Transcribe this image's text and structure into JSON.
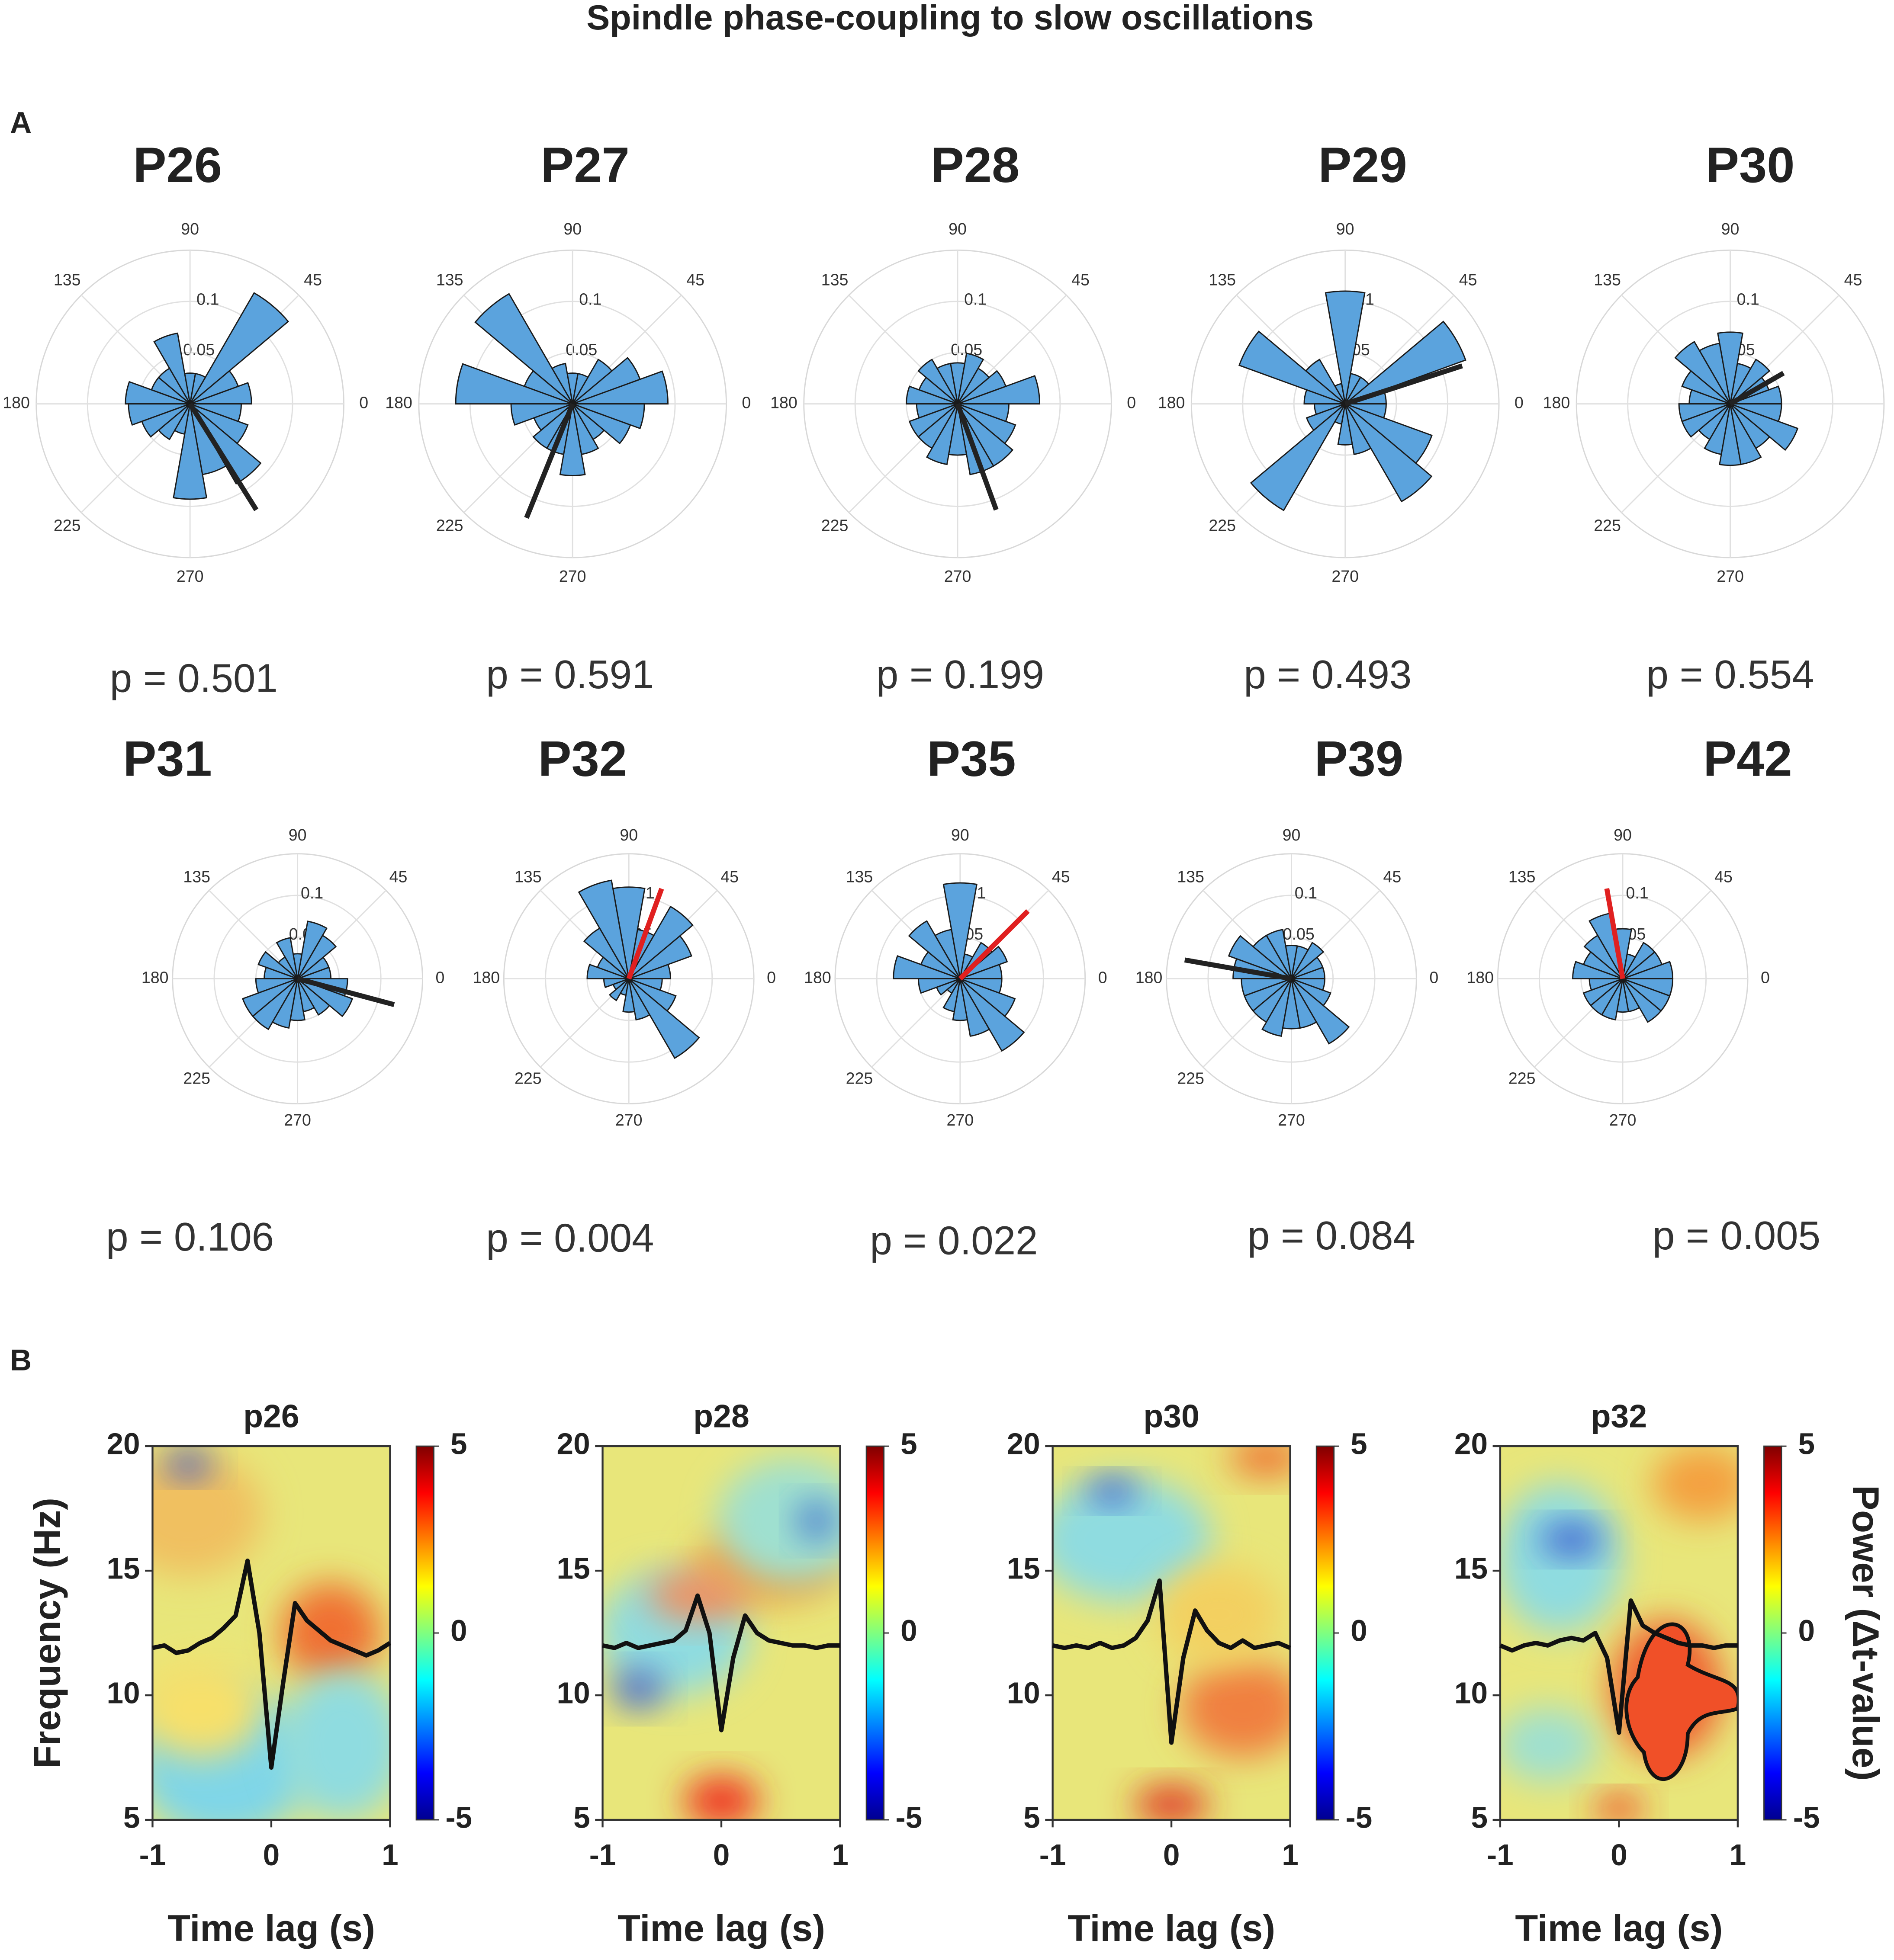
{
  "title": "Spindle phase-coupling to slow oscillations",
  "panel_labels": [
    "A",
    "B"
  ],
  "chart_data": [
    {
      "type": "polar_histogram",
      "title": "P26",
      "p_label": "p = 0.501",
      "bins": [
        0,
        20,
        40,
        60,
        80,
        100,
        120,
        140,
        160,
        180,
        200,
        220,
        240,
        260,
        280,
        300,
        320,
        340,
        360
      ],
      "values": [
        0.06,
        0.05,
        0.125,
        0.03,
        0.03,
        0.07,
        0.04,
        0.04,
        0.063,
        0.06,
        0.05,
        0.04,
        0.03,
        0.093,
        0.07,
        0.09,
        0.06,
        0.05
      ],
      "rlim": [
        0,
        0.15
      ],
      "rticks": [
        0.05,
        0.1
      ],
      "angle_ticks": [
        0,
        45,
        90,
        135,
        180,
        225,
        270
      ],
      "mean_angle": 302,
      "mean_length": 0.122,
      "mean_color": "#222222",
      "color": "#5ba3dd"
    },
    {
      "type": "polar_histogram",
      "title": "P27",
      "p_label": "p = 0.591",
      "bins": [
        0,
        20,
        40,
        60,
        80,
        100,
        120,
        140,
        160,
        180,
        200,
        220,
        240,
        260,
        280,
        300,
        320,
        340,
        360
      ],
      "values": [
        0.093,
        0.07,
        0.05,
        0.03,
        0.03,
        0.04,
        0.124,
        0.05,
        0.114,
        0.06,
        0.04,
        0.05,
        0.05,
        0.07,
        0.05,
        0.04,
        0.06,
        0.07
      ],
      "rlim": [
        0,
        0.15
      ],
      "rticks": [
        0.05,
        0.1
      ],
      "angle_ticks": [
        0,
        45,
        90,
        135,
        180,
        225,
        270
      ],
      "mean_angle": 248,
      "mean_length": 0.12,
      "mean_color": "#222222",
      "color": "#5ba3dd"
    },
    {
      "type": "polar_histogram",
      "title": "P28",
      "p_label": "p = 0.199",
      "bins": [
        0,
        20,
        40,
        60,
        80,
        100,
        120,
        140,
        160,
        180,
        200,
        220,
        240,
        260,
        280,
        300,
        320,
        340,
        360
      ],
      "values": [
        0.08,
        0.05,
        0.04,
        0.05,
        0.04,
        0.04,
        0.05,
        0.04,
        0.05,
        0.04,
        0.05,
        0.05,
        0.06,
        0.05,
        0.07,
        0.07,
        0.06,
        0.05
      ],
      "rlim": [
        0,
        0.15
      ],
      "rticks": [
        0.05,
        0.1
      ],
      "angle_ticks": [
        0,
        45,
        90,
        135,
        180,
        225,
        270
      ],
      "mean_angle": 290,
      "mean_length": 0.11,
      "mean_color": "#222222",
      "color": "#5ba3dd"
    },
    {
      "type": "polar_histogram",
      "title": "P29",
      "p_label": "p = 0.493",
      "bins": [
        0,
        20,
        40,
        60,
        80,
        100,
        120,
        140,
        160,
        180,
        200,
        220,
        240,
        260,
        280,
        300,
        320,
        340,
        360
      ],
      "values": [
        0.04,
        0.125,
        0.03,
        0.03,
        0.11,
        0.02,
        0.05,
        0.11,
        0.04,
        0.03,
        0.04,
        0.12,
        0.02,
        0.04,
        0.05,
        0.11,
        0.09,
        0.04
      ],
      "rlim": [
        0,
        0.15
      ],
      "rticks": [
        0.05,
        0.1
      ],
      "angle_ticks": [
        0,
        45,
        90,
        135,
        180,
        225,
        270
      ],
      "mean_angle": 18,
      "mean_length": 0.12,
      "mean_color": "#222222",
      "color": "#5ba3dd"
    },
    {
      "type": "polar_histogram",
      "title": "P30",
      "p_label": "p = 0.554",
      "bins": [
        0,
        20,
        40,
        60,
        80,
        100,
        120,
        140,
        160,
        180,
        200,
        220,
        240,
        260,
        280,
        300,
        320,
        340,
        360
      ],
      "values": [
        0.05,
        0.04,
        0.05,
        0.04,
        0.07,
        0.06,
        0.07,
        0.05,
        0.04,
        0.05,
        0.05,
        0.04,
        0.05,
        0.06,
        0.06,
        0.05,
        0.07,
        0.05
      ],
      "rlim": [
        0,
        0.15
      ],
      "rticks": [
        0.05,
        0.1
      ],
      "angle_ticks": [
        0,
        45,
        90,
        135,
        180,
        225,
        270
      ],
      "mean_angle": 30,
      "mean_length": 0.06,
      "mean_color": "#222222",
      "color": "#5ba3dd"
    },
    {
      "type": "polar_histogram",
      "title": "P31",
      "p_label": "p = 0.106",
      "bins": [
        0,
        20,
        40,
        60,
        80,
        100,
        120,
        140,
        160,
        180,
        200,
        220,
        240,
        260,
        280,
        300,
        320,
        340,
        360
      ],
      "values": [
        0.04,
        0.04,
        0.06,
        0.07,
        0.03,
        0.05,
        0.03,
        0.05,
        0.04,
        0.05,
        0.07,
        0.07,
        0.06,
        0.05,
        0.04,
        0.05,
        0.07,
        0.06
      ],
      "rlim": [
        0,
        0.15
      ],
      "rticks": [
        0.05,
        0.1
      ],
      "angle_ticks": [
        0,
        45,
        90,
        135,
        180,
        225,
        270
      ],
      "mean_angle": 345,
      "mean_length": 0.12,
      "mean_color": "#222222",
      "color": "#5ba3dd"
    },
    {
      "type": "polar_histogram",
      "title": "P32",
      "p_label": "p = 0.004",
      "bins": [
        0,
        20,
        40,
        60,
        80,
        100,
        120,
        140,
        160,
        180,
        200,
        220,
        240,
        260,
        280,
        300,
        320,
        340,
        360
      ],
      "values": [
        0.05,
        0.08,
        0.1,
        0.06,
        0.11,
        0.12,
        0.07,
        0.04,
        0.05,
        0.03,
        0.02,
        0.03,
        0.02,
        0.04,
        0.05,
        0.11,
        0.06,
        0.04
      ],
      "rlim": [
        0,
        0.15
      ],
      "rticks": [
        0.05,
        0.1
      ],
      "angle_ticks": [
        0,
        45,
        90,
        135,
        180,
        225,
        270
      ],
      "mean_angle": 70,
      "mean_length": 0.115,
      "mean_color": "#e02020",
      "color": "#5ba3dd"
    },
    {
      "type": "polar_histogram",
      "title": "P35",
      "p_label": "p = 0.022",
      "bins": [
        0,
        20,
        40,
        60,
        80,
        100,
        120,
        140,
        160,
        180,
        200,
        220,
        240,
        260,
        280,
        300,
        320,
        340,
        360
      ],
      "values": [
        0.05,
        0.06,
        0.05,
        0.03,
        0.115,
        0.06,
        0.08,
        0.05,
        0.08,
        0.05,
        0.03,
        0.02,
        0.04,
        0.05,
        0.07,
        0.1,
        0.07,
        0.05
      ],
      "rlim": [
        0,
        0.15
      ],
      "rticks": [
        0.05,
        0.1
      ],
      "angle_ticks": [
        0,
        45,
        90,
        135,
        180,
        225,
        270
      ],
      "mean_angle": 45,
      "mean_length": 0.115,
      "mean_color": "#e02020",
      "color": "#5ba3dd"
    },
    {
      "type": "polar_histogram",
      "title": "P39",
      "p_label": "p = 0.084",
      "bins": [
        0,
        20,
        40,
        60,
        80,
        100,
        120,
        140,
        160,
        180,
        200,
        220,
        240,
        260,
        280,
        300,
        320,
        340,
        360
      ],
      "values": [
        0.04,
        0.04,
        0.05,
        0.04,
        0.04,
        0.06,
        0.06,
        0.08,
        0.07,
        0.06,
        0.06,
        0.06,
        0.07,
        0.06,
        0.06,
        0.09,
        0.05,
        0.04
      ],
      "rlim": [
        0,
        0.15
      ],
      "rticks": [
        0.05,
        0.1
      ],
      "angle_ticks": [
        0,
        45,
        90,
        135,
        180,
        225,
        270
      ],
      "mean_angle": 170,
      "mean_length": 0.13,
      "mean_color": "#222222",
      "color": "#5ba3dd"
    },
    {
      "type": "polar_histogram",
      "title": "P42",
      "p_label": "p = 0.005",
      "bins": [
        0,
        20,
        40,
        60,
        80,
        100,
        120,
        140,
        160,
        180,
        200,
        220,
        240,
        260,
        280,
        300,
        320,
        340,
        360
      ],
      "values": [
        0.06,
        0.05,
        0.05,
        0.03,
        0.06,
        0.08,
        0.06,
        0.05,
        0.06,
        0.04,
        0.05,
        0.05,
        0.05,
        0.04,
        0.04,
        0.06,
        0.06,
        0.06
      ],
      "rlim": [
        0,
        0.15
      ],
      "rticks": [
        0.05,
        0.1
      ],
      "angle_ticks": [
        0,
        45,
        90,
        135,
        180,
        225,
        270
      ],
      "mean_angle": 100,
      "mean_length": 0.11,
      "mean_color": "#e02020",
      "color": "#5ba3dd"
    },
    {
      "type": "heatmap",
      "title": "p26",
      "xlabel": "Time lag (s)",
      "ylabel": "Frequency (Hz)",
      "xlim": [
        -1,
        1
      ],
      "xticks": [
        -1,
        0,
        1
      ],
      "ylim": [
        5,
        20
      ],
      "yticks": [
        5,
        10,
        15,
        20
      ],
      "clim": [
        -5,
        5
      ],
      "cticks": [
        -5,
        0,
        5
      ],
      "x": [
        -1,
        -0.9,
        -0.8,
        -0.7,
        -0.6,
        -0.5,
        -0.4,
        -0.3,
        -0.2,
        -0.1,
        0,
        0.1,
        0.2,
        0.3,
        0.4,
        0.5,
        0.6,
        0.7,
        0.8,
        0.9,
        1
      ],
      "values": [
        11.9,
        12,
        11.7,
        11.8,
        12.1,
        12.3,
        12.7,
        13.2,
        15.4,
        12.5,
        7.1,
        10.5,
        13.7,
        13,
        12.6,
        12.2,
        12,
        11.8,
        11.6,
        11.8,
        12.1
      ]
    },
    {
      "type": "heatmap",
      "title": "p28",
      "xlabel": "Time lag (s)",
      "xlim": [
        -1,
        1
      ],
      "xticks": [
        -1,
        0,
        1
      ],
      "ylim": [
        5,
        20
      ],
      "yticks": [
        5,
        10,
        15,
        20
      ],
      "clim": [
        -5,
        5
      ],
      "cticks": [
        -5,
        0,
        5
      ],
      "x": [
        -1,
        -0.9,
        -0.8,
        -0.7,
        -0.6,
        -0.5,
        -0.4,
        -0.3,
        -0.2,
        -0.1,
        0,
        0.1,
        0.2,
        0.3,
        0.4,
        0.5,
        0.6,
        0.7,
        0.8,
        0.9,
        1
      ],
      "values": [
        12,
        11.9,
        12.1,
        11.9,
        12,
        12.1,
        12.2,
        12.6,
        14,
        12.5,
        8.6,
        11.5,
        13.2,
        12.5,
        12.2,
        12.1,
        12,
        12,
        11.9,
        12,
        12
      ]
    },
    {
      "type": "heatmap",
      "title": "p30",
      "xlabel": "Time lag (s)",
      "xlim": [
        -1,
        1
      ],
      "xticks": [
        -1,
        0,
        1
      ],
      "ylim": [
        5,
        20
      ],
      "yticks": [
        5,
        10,
        15,
        20
      ],
      "clim": [
        -5,
        5
      ],
      "cticks": [
        -5,
        0,
        5
      ],
      "x": [
        -1,
        -0.9,
        -0.8,
        -0.7,
        -0.6,
        -0.5,
        -0.4,
        -0.3,
        -0.2,
        -0.1,
        0,
        0.1,
        0.2,
        0.3,
        0.4,
        0.5,
        0.6,
        0.7,
        0.8,
        0.9,
        1
      ],
      "values": [
        12,
        11.9,
        12,
        11.9,
        12.1,
        11.9,
        12,
        12.3,
        13,
        14.6,
        8.1,
        11.5,
        13.4,
        12.6,
        12.1,
        11.9,
        12.2,
        11.9,
        12,
        12.1,
        11.9
      ]
    },
    {
      "type": "heatmap",
      "title": "p32",
      "xlabel": "Time lag (s)",
      "clabel": "Power (Δt-value)",
      "xlim": [
        -1,
        1
      ],
      "xticks": [
        -1,
        0,
        1
      ],
      "ylim": [
        5,
        20
      ],
      "yticks": [
        5,
        10,
        15,
        20
      ],
      "clim": [
        -5,
        5
      ],
      "cticks": [
        -5,
        0,
        5
      ],
      "x": [
        -1,
        -0.9,
        -0.8,
        -0.7,
        -0.6,
        -0.5,
        -0.4,
        -0.3,
        -0.2,
        -0.1,
        0,
        0.1,
        0.2,
        0.3,
        0.4,
        0.5,
        0.6,
        0.7,
        0.8,
        0.9,
        1
      ],
      "values": [
        12,
        11.8,
        12,
        12.1,
        12,
        12.2,
        12.3,
        12.2,
        12.5,
        11.5,
        8.5,
        13.8,
        12.8,
        12.5,
        12.3,
        12.1,
        12,
        12,
        11.9,
        12,
        12
      ]
    }
  ]
}
